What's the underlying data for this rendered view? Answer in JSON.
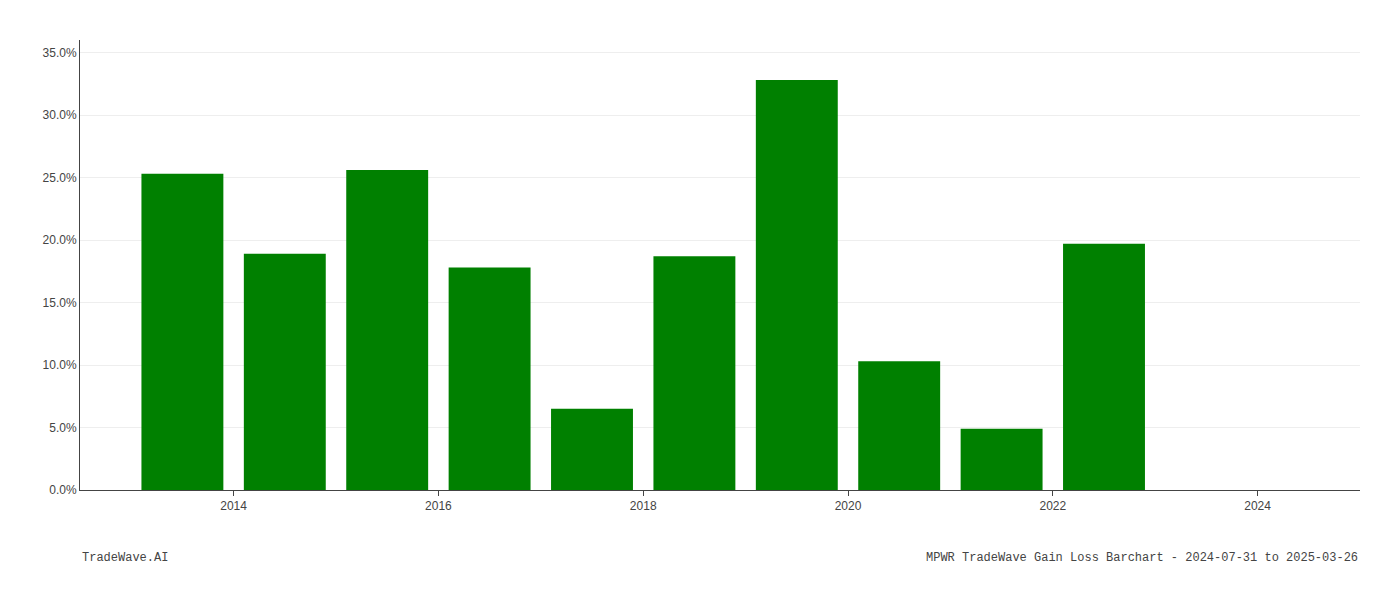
{
  "chart_data": {
    "type": "bar",
    "x": [
      2013.5,
      2014.5,
      2015.5,
      2016.5,
      2017.5,
      2018.5,
      2019.5,
      2020.5,
      2021.5,
      2022.5
    ],
    "values": [
      0.253,
      0.189,
      0.256,
      0.178,
      0.065,
      0.187,
      0.328,
      0.103,
      0.049,
      0.197
    ],
    "color": "#008000",
    "xlim": [
      2012.5,
      2025.0
    ],
    "ylim": [
      0,
      0.36
    ],
    "xticks": [
      2014,
      2016,
      2018,
      2020,
      2022,
      2024
    ],
    "yticks": [
      {
        "value": 0.0,
        "label": "0.0%"
      },
      {
        "value": 0.05,
        "label": "5.0%"
      },
      {
        "value": 0.1,
        "label": "10.0%"
      },
      {
        "value": 0.15,
        "label": "15.0%"
      },
      {
        "value": 0.2,
        "label": "20.0%"
      },
      {
        "value": 0.25,
        "label": "25.0%"
      },
      {
        "value": 0.3,
        "label": "30.0%"
      },
      {
        "value": 0.35,
        "label": "35.0%"
      }
    ],
    "grid": true,
    "annotations": [
      "TradeWave.AI",
      "MPWR TradeWave Gain Loss Barchart - 2024-07-31 to 2025-03-26"
    ]
  }
}
